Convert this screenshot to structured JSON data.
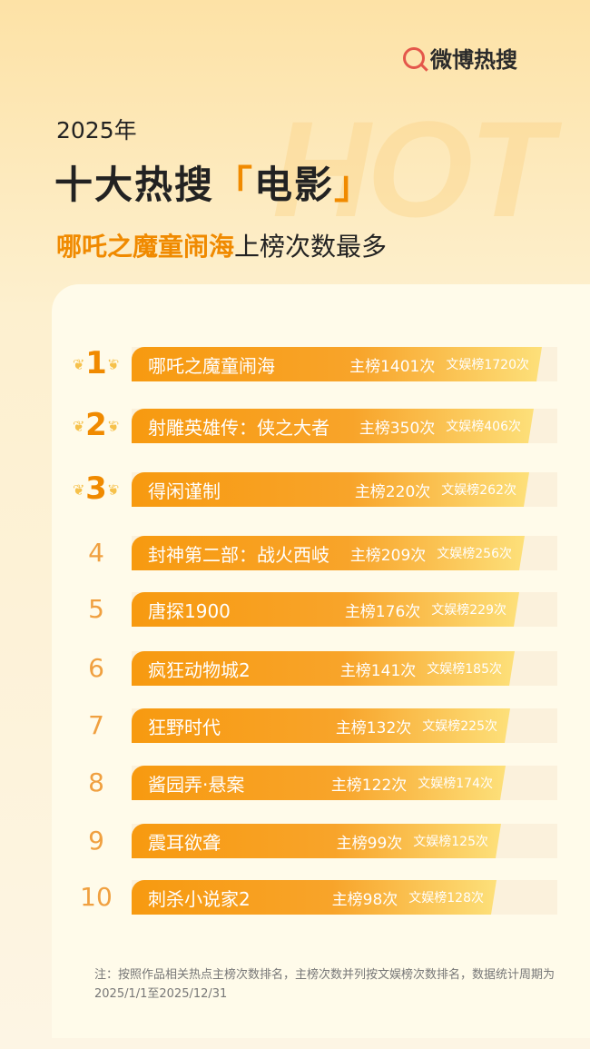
{
  "brand": {
    "logo_text": "微博热搜",
    "watermark": "HOT"
  },
  "header": {
    "year": "2025年",
    "title_prefix": "十大热搜",
    "title_bracket_open": "「",
    "title_category": "电影",
    "title_bracket_close": "」",
    "subtitle_highlight": "哪吒之魔童闹海",
    "subtitle_rest": "上榜次数最多"
  },
  "colors": {
    "accent": "#f08a00",
    "bar_start": "#f79a10",
    "bar_end": "#fde07a"
  },
  "ranking": [
    {
      "rank": "1",
      "name": "哪吒之魔童闹海",
      "main": "主榜1401次",
      "ent": "文娱榜1720次"
    },
    {
      "rank": "2",
      "name": "射雕英雄传：侠之大者",
      "main": "主榜350次",
      "ent": "文娱榜406次"
    },
    {
      "rank": "3",
      "name": "得闲谨制",
      "main": "主榜220次",
      "ent": "文娱榜262次"
    },
    {
      "rank": "4",
      "name": "封神第二部：战火西岐",
      "main": "主榜209次",
      "ent": "文娱榜256次"
    },
    {
      "rank": "5",
      "name": "唐探1900",
      "main": "主榜176次",
      "ent": "文娱榜229次"
    },
    {
      "rank": "6",
      "name": "疯狂动物城2",
      "main": "主榜141次",
      "ent": "文娱榜185次"
    },
    {
      "rank": "7",
      "name": "狂野时代",
      "main": "主榜132次",
      "ent": "文娱榜225次"
    },
    {
      "rank": "8",
      "name": "酱园弄·悬案",
      "main": "主榜122次",
      "ent": "文娱榜174次"
    },
    {
      "rank": "9",
      "name": "震耳欲聋",
      "main": "主榜99次",
      "ent": "文娱榜125次"
    },
    {
      "rank": "10",
      "name": "刺杀小说家2",
      "main": "主榜98次",
      "ent": "文娱榜128次"
    }
  ],
  "footnote": "注：按照作品相关热点主榜次数排名，主榜次数并列按文娱榜次数排名，数据统计周期为2025/1/1至2025/12/31"
}
